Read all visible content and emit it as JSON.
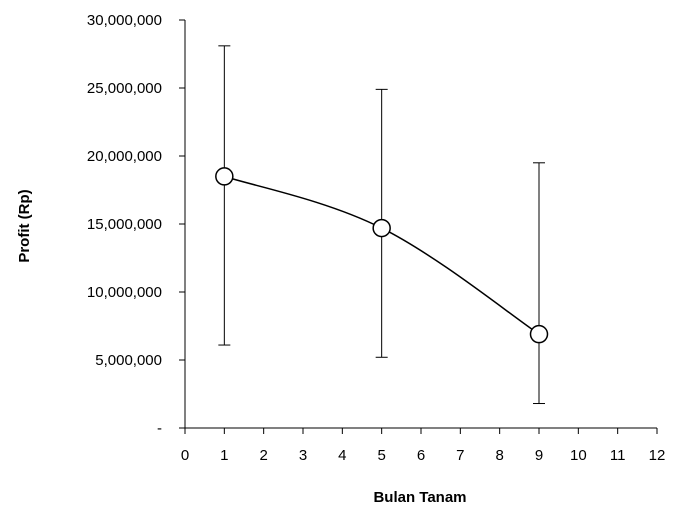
{
  "chart_data": {
    "type": "line",
    "xlabel": "Bulan Tanam",
    "ylabel": "Profit (Rp)",
    "xlim": [
      0,
      12
    ],
    "ylim": [
      0,
      30000000
    ],
    "x_ticks": [
      0,
      1,
      2,
      3,
      4,
      5,
      6,
      7,
      8,
      9,
      10,
      11,
      12
    ],
    "x_tick_labels": [
      "0",
      "1",
      "2",
      "3",
      "4",
      "5",
      "6",
      "7",
      "8",
      "9",
      "10",
      "11",
      "12"
    ],
    "y_ticks": [
      0,
      5000000,
      10000000,
      15000000,
      20000000,
      25000000,
      30000000
    ],
    "y_tick_labels": [
      "-",
      "5,000,000",
      "10,000,000",
      "15,000,000",
      "20,000,000",
      "25,000,000",
      "30,000,000"
    ],
    "grid": false,
    "legend": "none",
    "series": [
      {
        "x": [
          1,
          5,
          9
        ],
        "y": [
          18500000,
          14700000,
          6900000
        ],
        "error_low": [
          6100000,
          5200000,
          1800000
        ],
        "error_high": [
          28100000,
          24900000,
          19500000
        ],
        "marker": "open-circle",
        "line_style": "smooth",
        "color": "#000000"
      }
    ]
  }
}
